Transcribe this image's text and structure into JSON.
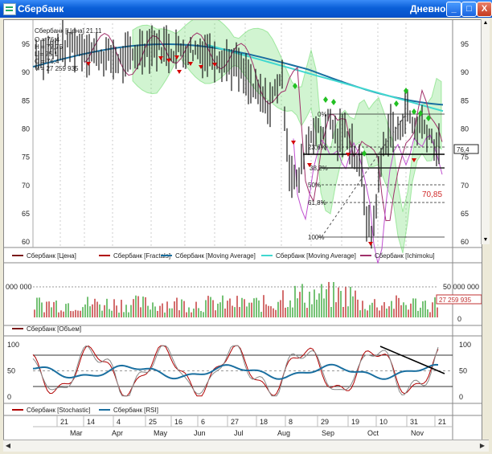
{
  "window": {
    "title": "Сбербанк",
    "right_title": "Дневной",
    "buttons": {
      "minimize": "_",
      "maximize": "□",
      "close": "X"
    }
  },
  "info_box": {
    "header": "Сбербанк [Цена] 21.11",
    "lines": [
      "O = 76,4",
      "H = 77,75",
      "L = 75,1",
      "C = 76,4",
      "V = 27 259 935"
    ]
  },
  "price_axis": {
    "left_ticks": [
      "95",
      "90",
      "85",
      "80",
      "75",
      "70",
      "65",
      "60"
    ],
    "right_ticks": [
      "95",
      "90",
      "85",
      "80",
      "75",
      "70",
      "65",
      "60"
    ],
    "current_price_label": "76,4",
    "target_label": "70,85"
  },
  "fib_levels": [
    "0%",
    "23,6%",
    "38,2%",
    "50%",
    "61,8%",
    "100%"
  ],
  "price_legend": [
    {
      "label": "Сбербанк [Цена]",
      "color": "#7a1a1a"
    },
    {
      "label": "Сбербанк [Fractals]",
      "color": "#b00000"
    },
    {
      "label": "Сбербанк [Moving Average]",
      "color": "#1a6fa0"
    },
    {
      "label": "Сбербанк [Moving Average]",
      "color": "#40d8d0"
    },
    {
      "label": "Сбербанк [Ichimoku]",
      "color": "#a0306a"
    }
  ],
  "volume_axis": {
    "left_label": "000 000",
    "right_ticks": [
      "50 000 000",
      "0"
    ],
    "current_label": "27 259 935"
  },
  "volume_legend": [
    {
      "label": "Сбербанк [Объем]",
      "color": "#7a1a1a"
    }
  ],
  "osc_axis": {
    "left_ticks": [
      "100",
      "50",
      "0"
    ],
    "right_ticks": [
      "100",
      "50",
      "0"
    ]
  },
  "osc_legend": [
    {
      "label": "Сбербанк [Stochastic]",
      "color": "#b00000"
    },
    {
      "label": "Сбербанк [RSI]",
      "color": "#1a6fa0"
    }
  ],
  "date_axis": {
    "days": [
      "21",
      "14",
      "4",
      "25",
      "16",
      "6",
      "27",
      "18",
      "8",
      "29",
      "19",
      "10",
      "31",
      "21"
    ],
    "months": [
      "Mar",
      "Apr",
      "May",
      "Jun",
      "Jul",
      "Aug",
      "Sep",
      "Oct",
      "Nov"
    ]
  },
  "colors": {
    "price_line": "#1a1a1a",
    "fractal_down": "#d40000",
    "fractal_up": "#22c022",
    "ma_slow": "#1a6fa0",
    "ma_fast": "#40d8d0",
    "ichimoku": "#a0306a",
    "cloud": "#5ad85a",
    "target": "#d02a2a",
    "volume_up": "#3aa83a",
    "volume_down": "#c03030"
  }
}
